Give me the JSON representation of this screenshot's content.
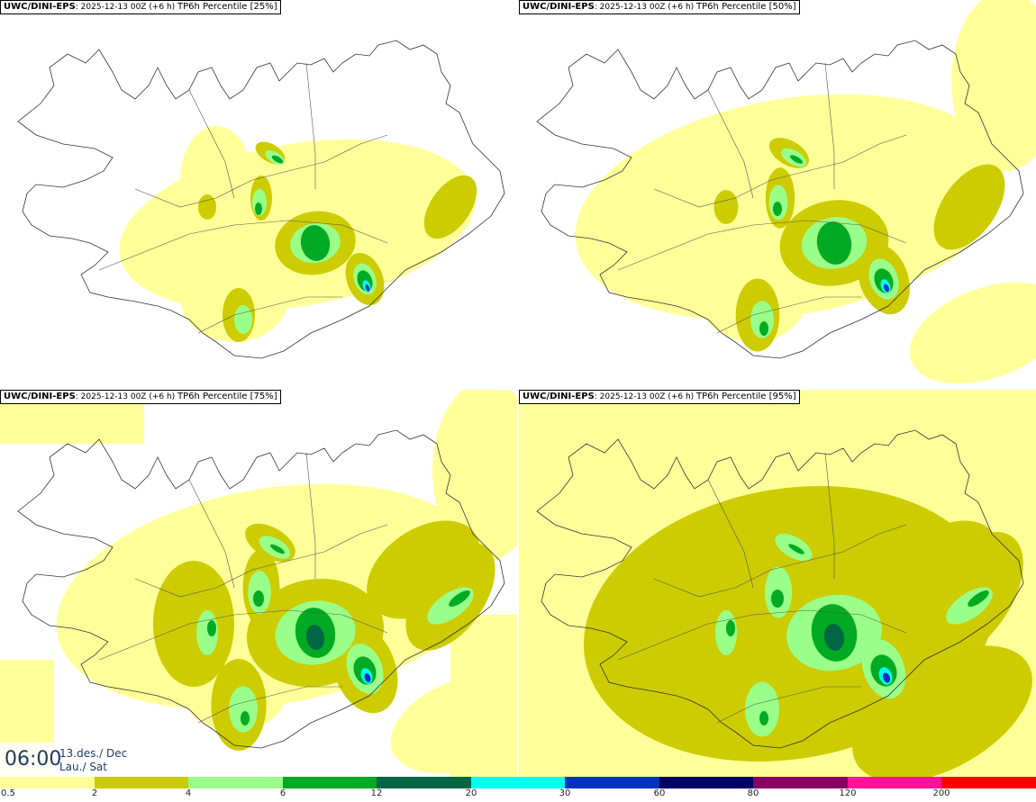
{
  "panels": [
    {
      "model": "UWC/DINI-EPS",
      "meta": "2025-12-13 00Z (+6 h)",
      "field": "TP6h Percentile [25%]"
    },
    {
      "model": "UWC/DINI-EPS",
      "meta": "2025-12-13 00Z (+6 h)",
      "field": "TP6h Percentile [50%]"
    },
    {
      "model": "UWC/DINI-EPS",
      "meta": "2025-12-13 00Z (+6 h)",
      "field": "TP6h Percentile [75%]"
    },
    {
      "model": "UWC/DINI-EPS",
      "meta": "2025-12-13 00Z (+6 h)",
      "field": "TP6h Percentile [95%]"
    }
  ],
  "valid_time": {
    "time": "06:00",
    "date": "13.des./ Dec",
    "day": "Lau./ Sat"
  },
  "colorbar": {
    "labels": [
      "0.5",
      "2",
      "4",
      "6",
      "12",
      "20",
      "30",
      "60",
      "80",
      "120",
      "200"
    ],
    "colors": [
      "#ffff99",
      "#cccc00",
      "#99ff88",
      "#00aa22",
      "#006644",
      "#00ffee",
      "#0033bb",
      "#000066",
      "#880066",
      "#ff1199",
      "#ff0000"
    ]
  }
}
